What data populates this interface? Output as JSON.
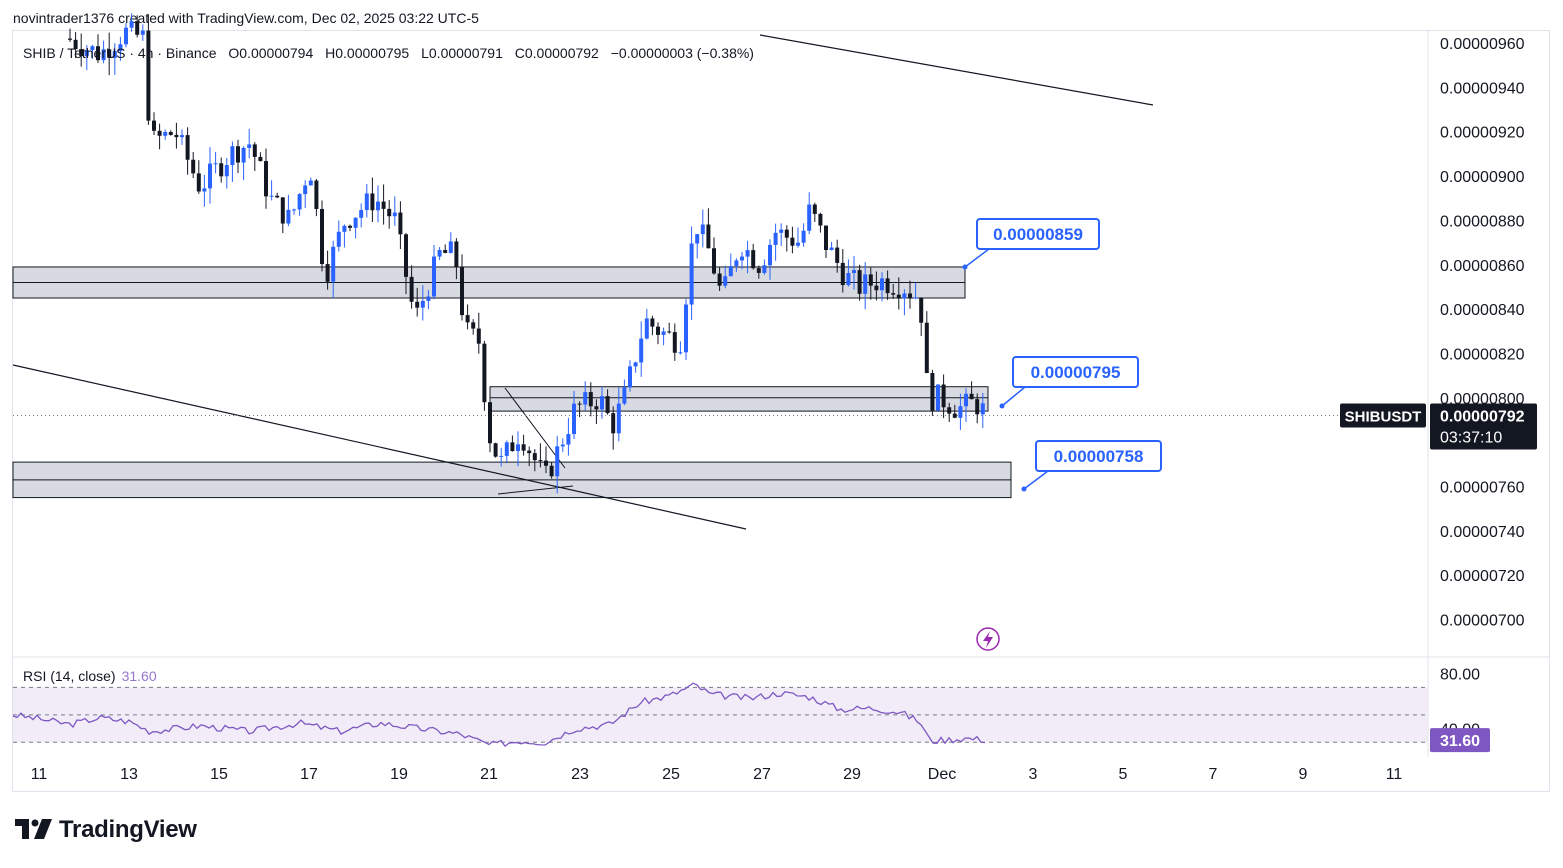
{
  "header": {
    "attribution": "novintrader1376 created with TradingView.com, Dec 02, 2025 03:22 UTC-5"
  },
  "legend": {
    "symbol": "SHIB / TetherUS · 4h · Binance",
    "open": "O0.00000794",
    "high": "H0.00000795",
    "low": "L0.00000791",
    "close": "C0.00000792",
    "change": "−0.00000003 (−0.38%)"
  },
  "price_axis": {
    "ticks": [
      "0.00000960",
      "0.00000940",
      "0.00000920",
      "0.00000900",
      "0.00000880",
      "0.00000860",
      "0.00000840",
      "0.00000820",
      "0.00000800",
      "0.00000760",
      "0.00000740",
      "0.00000720",
      "0.00000700"
    ],
    "symbol_badge": "SHIBUSDT",
    "last_price": "0.00000792",
    "countdown": "03:37:10"
  },
  "time_axis": {
    "ticks": [
      "11",
      "13",
      "15",
      "17",
      "19",
      "21",
      "23",
      "25",
      "27",
      "29",
      "Dec",
      "3",
      "5",
      "7",
      "9",
      "11"
    ]
  },
  "callouts": {
    "top": "0.00000859",
    "mid": "0.00000795",
    "low": "0.00000758"
  },
  "rsi": {
    "label": "RSI (14, close)",
    "value": "31.60",
    "axis_top": "80.00",
    "axis_mid": "40.00",
    "badge": "31.60",
    "upper_band": 70,
    "middle_band": 50,
    "lower_band": 30
  },
  "footer": {
    "brand": "TradingView"
  },
  "colors": {
    "bull": "#2962ff",
    "bear": "#131722",
    "zone_fill": "#d1d4dc",
    "callout": "#2962ff",
    "rsi_line": "#7e57c2",
    "rsi_fill": "#ede7f6",
    "rsi_badge": "#7e57c2"
  },
  "chart_data": {
    "type": "candlestick",
    "title": "SHIB / TetherUS · 4h · Binance",
    "timeframe": "4h",
    "ylim": [
      6.9e-06,
      9.65e-06
    ],
    "x_ticks": [
      "11",
      "13",
      "15",
      "17",
      "19",
      "21",
      "23",
      "25",
      "27",
      "29",
      "Dec",
      "3",
      "5",
      "7",
      "9",
      "11"
    ],
    "price_zones": [
      {
        "top": 8.59e-06,
        "mid": 8.52e-06,
        "bottom": 8.45e-06
      },
      {
        "top": 8.05e-06,
        "mid": 8e-06,
        "bottom": 7.94e-06
      },
      {
        "top": 7.71e-06,
        "mid": 7.63e-06,
        "bottom": 7.55e-06
      }
    ],
    "last_price": 7.92e-06,
    "rsi": {
      "period": 14,
      "source": "close",
      "last": 31.6,
      "ylim": [
        20,
        90
      ],
      "bands": [
        70,
        50,
        30
      ]
    }
  }
}
